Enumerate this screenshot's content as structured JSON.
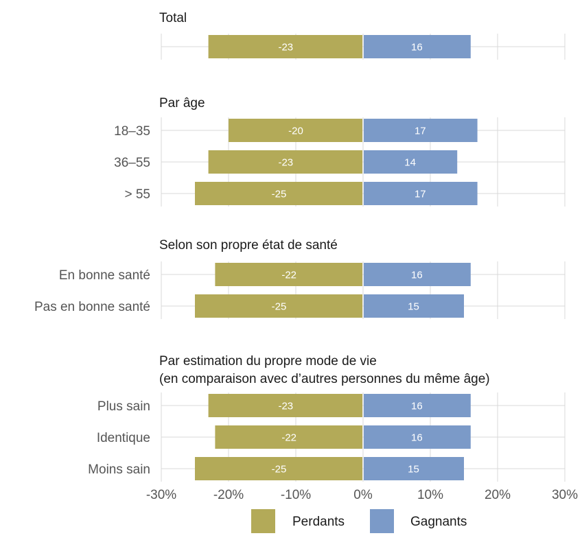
{
  "chart_data": {
    "type": "bar",
    "orientation": "horizontal-diverging",
    "xlim": [
      -30,
      30
    ],
    "x_ticks": [
      -30,
      -20,
      -10,
      0,
      10,
      20,
      30
    ],
    "x_tick_labels": [
      "-30%",
      "-20%",
      "-10%",
      "0%",
      "10%",
      "20%",
      "30%"
    ],
    "grid": true,
    "legend_position": "bottom",
    "series": [
      {
        "name": "Perdants",
        "color": "#b3aa58"
      },
      {
        "name": "Gagnants",
        "color": "#7b9ac8"
      }
    ],
    "panels": [
      {
        "title": [
          "Total"
        ],
        "rows": [
          {
            "label": "",
            "Perdants": -23,
            "Gagnants": 16
          }
        ]
      },
      {
        "title": [
          "Par âge"
        ],
        "rows": [
          {
            "label": "18–35",
            "Perdants": -20,
            "Gagnants": 17
          },
          {
            "label": "36–55",
            "Perdants": -23,
            "Gagnants": 14
          },
          {
            "label": "> 55",
            "Perdants": -25,
            "Gagnants": 17
          }
        ]
      },
      {
        "title": [
          "Selon son propre état de santé"
        ],
        "rows": [
          {
            "label": "En bonne santé",
            "Perdants": -22,
            "Gagnants": 16
          },
          {
            "label": "Pas en bonne santé",
            "Perdants": -25,
            "Gagnants": 15
          }
        ]
      },
      {
        "title": [
          "Par estimation du propre mode de vie",
          "(en comparaison avec d’autres personnes du même âge)"
        ],
        "rows": [
          {
            "label": "Plus sain",
            "Perdants": -23,
            "Gagnants": 16
          },
          {
            "label": "Identique",
            "Perdants": -22,
            "Gagnants": 16
          },
          {
            "label": "Moins sain",
            "Perdants": -25,
            "Gagnants": 15
          }
        ]
      }
    ]
  }
}
